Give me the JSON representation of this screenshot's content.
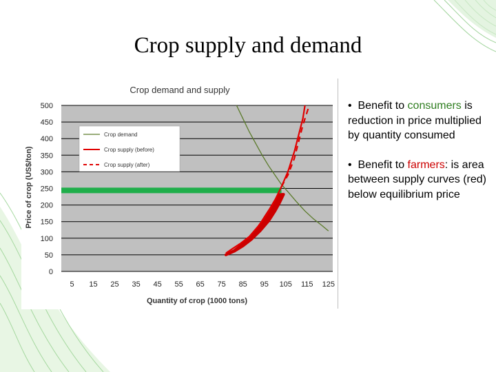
{
  "slide": {
    "title": "Crop supply and demand",
    "bullets": [
      {
        "marker": "•",
        "pre": "Benefit to ",
        "keyword": "consumers",
        "keyword_color": "#2e7d1f",
        "post": " is reduction in price multiplied by quantity consumed"
      },
      {
        "marker": "•",
        "pre": "Benefit to ",
        "keyword": "farmers",
        "keyword_color": "#cc0000",
        "post": ": is area between supply curves (red) below equilibrium price"
      }
    ]
  },
  "colors": {
    "plot_background": "#c0c0c0",
    "gridline": "#000000",
    "demand": "#5a7a2a",
    "supply": "#e00000",
    "consumer_benefit": "#1fae4a",
    "farmer_benefit": "#cc0000"
  },
  "chart_data": {
    "type": "line",
    "title": "Crop demand and supply",
    "xlabel": "Quantity of crop (1000 tons)",
    "ylabel": "Price of crop (US$/ton)",
    "xlim": [
      0,
      127
    ],
    "ylim": [
      0,
      500
    ],
    "x_ticks": [
      5,
      15,
      25,
      35,
      45,
      55,
      65,
      75,
      85,
      95,
      105,
      115,
      125
    ],
    "y_ticks": [
      0,
      50,
      100,
      150,
      200,
      250,
      300,
      350,
      400,
      450,
      500
    ],
    "grid": "horizontal",
    "legend": "upper-left",
    "series": [
      {
        "name": "Crop demand",
        "style": "solid",
        "color": "#5a7a2a",
        "points": [
          [
            82,
            500
          ],
          [
            85,
            460
          ],
          [
            88,
            420
          ],
          [
            91,
            385
          ],
          [
            94,
            350
          ],
          [
            97,
            318
          ],
          [
            100,
            290
          ],
          [
            103,
            262
          ],
          [
            106,
            240
          ],
          [
            110,
            210
          ],
          [
            114,
            182
          ],
          [
            118,
            158
          ],
          [
            122,
            138
          ],
          [
            125,
            122
          ]
        ]
      },
      {
        "name": "Crop supply (before)",
        "style": "solid",
        "color": "#e00000",
        "points": [
          [
            77,
            55
          ],
          [
            80,
            68
          ],
          [
            84,
            85
          ],
          [
            88,
            105
          ],
          [
            92,
            135
          ],
          [
            96,
            170
          ],
          [
            100,
            215
          ],
          [
            103,
            255
          ],
          [
            106,
            300
          ],
          [
            109,
            360
          ],
          [
            111,
            410
          ],
          [
            113,
            460
          ],
          [
            114,
            500
          ]
        ]
      },
      {
        "name": "Crop supply (after)",
        "style": "dashed",
        "color": "#e00000",
        "points": [
          [
            103,
            255
          ],
          [
            106,
            290
          ],
          [
            109,
            340
          ],
          [
            111,
            390
          ],
          [
            113,
            440
          ],
          [
            115,
            480
          ],
          [
            116,
            500
          ]
        ]
      }
    ],
    "annotations": [
      {
        "kind": "horizontal_band",
        "meaning": "consumer benefit",
        "color": "#1fae4a",
        "x_range": [
          0,
          103
        ],
        "y": 244
      },
      {
        "kind": "filled_region",
        "meaning": "farmer benefit",
        "color": "#cc0000",
        "polygon": [
          [
            77,
            50
          ],
          [
            81,
            63
          ],
          [
            85,
            83
          ],
          [
            88,
            100
          ],
          [
            92,
            130
          ],
          [
            95,
            160
          ],
          [
            98,
            190
          ],
          [
            100,
            212
          ],
          [
            102,
            232
          ],
          [
            104,
            232
          ],
          [
            102,
            205
          ],
          [
            100,
            182
          ],
          [
            97,
            152
          ],
          [
            93,
            122
          ],
          [
            89,
            97
          ],
          [
            85,
            77
          ],
          [
            81,
            61
          ],
          [
            77,
            50
          ]
        ]
      }
    ]
  }
}
